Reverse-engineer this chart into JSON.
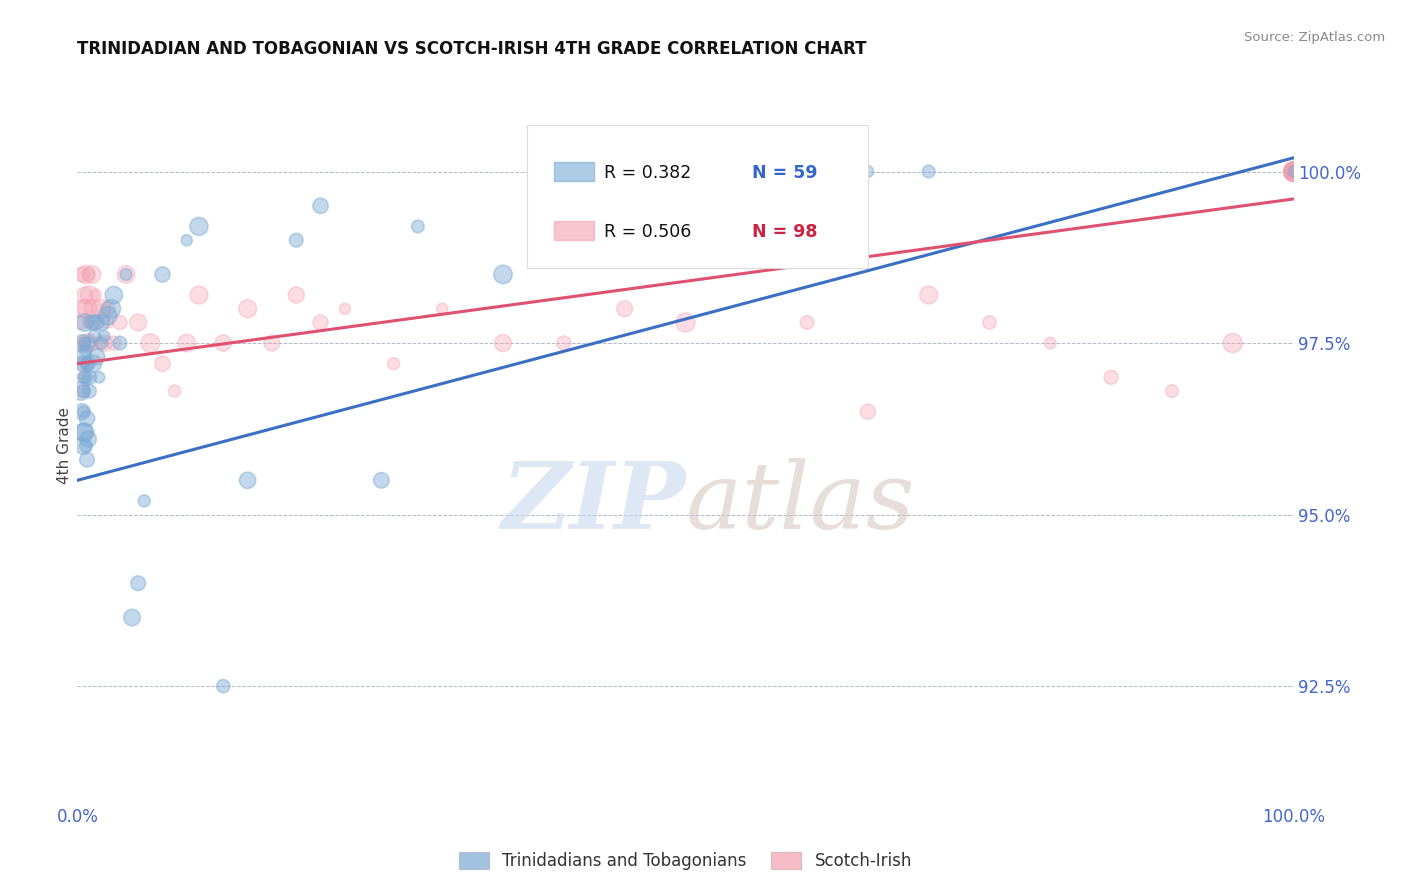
{
  "title": "TRINIDADIAN AND TOBAGONIAN VS SCOTCH-IRISH 4TH GRADE CORRELATION CHART",
  "source": "Source: ZipAtlas.com",
  "ylabel": "4th Grade",
  "ylabel_right_ticks": [
    92.5,
    95.0,
    97.5,
    100.0
  ],
  "ylabel_right_labels": [
    "92.5%",
    "95.0%",
    "97.5%",
    "100.0%"
  ],
  "xmin": 0.0,
  "xmax": 100.0,
  "ymin": 90.8,
  "ymax": 101.2,
  "blue_R": 0.382,
  "blue_N": 59,
  "pink_R": 0.506,
  "pink_N": 98,
  "blue_color": "#7aaad4",
  "pink_color": "#f4a0b0",
  "blue_line_color": "#3a6fc4",
  "pink_line_color": "#e05070",
  "blue_label": "Trinidadians and Tobagonians",
  "pink_label": "Scotch-Irish",
  "watermark_zip": "ZIP",
  "watermark_atlas": "atlas",
  "blue_trend_x0": 0.0,
  "blue_trend_y0": 95.5,
  "blue_trend_x1": 100.0,
  "blue_trend_y1": 100.2,
  "pink_trend_x0": 0.0,
  "pink_trend_y0": 97.2,
  "pink_trend_x1": 100.0,
  "pink_trend_y1": 99.6,
  "blue_scatter_x": [
    0.3,
    0.3,
    0.4,
    0.4,
    0.5,
    0.5,
    0.5,
    0.5,
    0.5,
    0.5,
    0.6,
    0.6,
    0.6,
    0.7,
    0.7,
    0.7,
    0.8,
    0.8,
    0.8,
    0.9,
    0.9,
    1.0,
    1.0,
    1.0,
    1.2,
    1.3,
    1.4,
    1.5,
    1.6,
    1.8,
    2.0,
    2.0,
    2.2,
    2.5,
    2.8,
    3.0,
    3.5,
    4.0,
    4.5,
    5.0,
    5.5,
    7.0,
    9.0,
    10.0,
    12.0,
    14.0,
    18.0,
    20.0,
    25.0,
    28.0,
    35.0,
    40.0,
    45.0,
    50.0,
    55.0,
    60.0,
    65.0,
    70.0,
    100.0
  ],
  "blue_scatter_y": [
    97.2,
    96.8,
    97.5,
    96.5,
    97.0,
    96.8,
    96.5,
    96.2,
    97.3,
    96.0,
    97.5,
    96.2,
    97.8,
    97.0,
    96.0,
    97.4,
    97.2,
    96.4,
    95.8,
    97.2,
    96.1,
    97.5,
    96.8,
    97.0,
    97.8,
    97.2,
    97.6,
    97.8,
    97.3,
    97.0,
    97.8,
    97.5,
    97.6,
    97.9,
    98.0,
    98.2,
    97.5,
    98.5,
    93.5,
    94.0,
    95.2,
    98.5,
    99.0,
    99.2,
    92.5,
    95.5,
    99.0,
    99.5,
    95.5,
    99.2,
    98.5,
    100.0,
    100.0,
    100.0,
    100.0,
    100.0,
    100.0,
    100.0,
    100.0
  ],
  "pink_scatter_x": [
    0.3,
    0.4,
    0.4,
    0.5,
    0.5,
    0.5,
    0.6,
    0.6,
    0.7,
    0.7,
    0.8,
    0.8,
    0.9,
    0.9,
    1.0,
    1.0,
    1.2,
    1.3,
    1.5,
    1.6,
    1.8,
    2.0,
    2.2,
    2.5,
    2.5,
    3.0,
    3.5,
    4.0,
    5.0,
    6.0,
    7.0,
    8.0,
    9.0,
    10.0,
    12.0,
    14.0,
    16.0,
    18.0,
    20.0,
    22.0,
    26.0,
    30.0,
    35.0,
    40.0,
    45.0,
    50.0,
    60.0,
    65.0,
    70.0,
    75.0,
    80.0,
    85.0,
    90.0,
    95.0,
    100.0,
    100.0,
    100.0,
    100.0,
    100.0,
    100.0,
    100.0,
    100.0,
    100.0,
    100.0,
    100.0,
    100.0,
    100.0,
    100.0,
    100.0,
    100.0,
    100.0,
    100.0,
    100.0,
    100.0,
    100.0,
    100.0,
    100.0,
    100.0,
    100.0,
    100.0,
    100.0,
    100.0,
    100.0,
    100.0,
    100.0,
    100.0,
    100.0,
    100.0,
    100.0,
    100.0,
    100.0,
    100.0,
    100.0,
    100.0,
    100.0,
    100.0,
    100.0,
    100.0
  ],
  "pink_scatter_y": [
    97.8,
    98.5,
    97.5,
    98.0,
    97.2,
    96.8,
    98.2,
    97.0,
    98.5,
    97.2,
    98.0,
    97.5,
    98.5,
    97.8,
    98.2,
    97.5,
    98.5,
    98.0,
    98.2,
    97.8,
    97.5,
    98.0,
    97.5,
    98.0,
    97.8,
    97.5,
    97.8,
    98.5,
    97.8,
    97.5,
    97.2,
    96.8,
    97.5,
    98.2,
    97.5,
    98.0,
    97.5,
    98.2,
    97.8,
    98.0,
    97.2,
    98.0,
    97.5,
    97.5,
    98.0,
    97.8,
    97.8,
    96.5,
    98.2,
    97.8,
    97.5,
    97.0,
    96.8,
    97.5,
    100.0,
    100.0,
    100.0,
    100.0,
    100.0,
    100.0,
    100.0,
    100.0,
    100.0,
    100.0,
    100.0,
    100.0,
    100.0,
    100.0,
    100.0,
    100.0,
    100.0,
    100.0,
    100.0,
    100.0,
    100.0,
    100.0,
    100.0,
    100.0,
    100.0,
    100.0,
    100.0,
    100.0,
    100.0,
    100.0,
    100.0,
    100.0,
    100.0,
    100.0,
    100.0,
    100.0,
    100.0,
    100.0,
    100.0,
    100.0,
    100.0,
    100.0,
    100.0,
    100.0
  ]
}
